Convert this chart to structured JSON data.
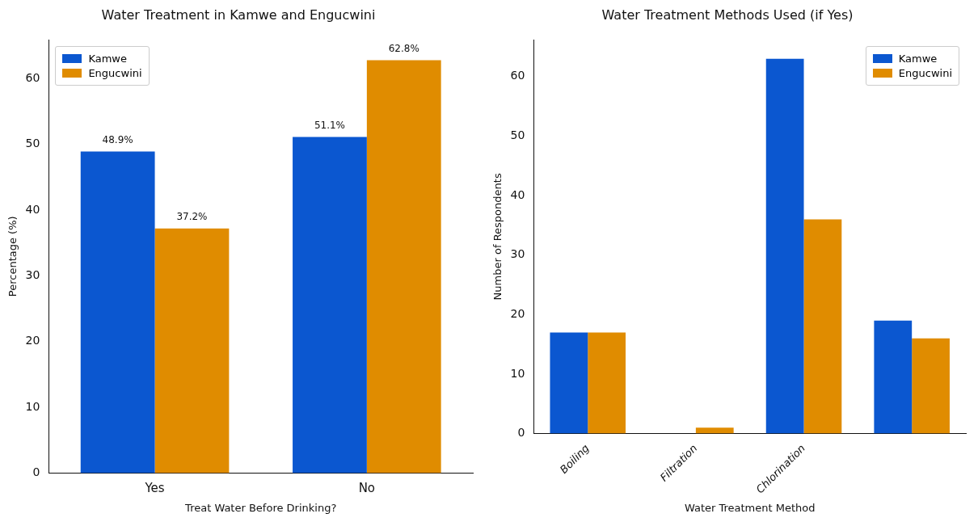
{
  "chart_data": [
    {
      "type": "bar",
      "title": "Water Treatment in Kamwe and Engucwini",
      "xlabel": "Treat Water Before Drinking?",
      "ylabel": "Percentage (%)",
      "categories": [
        "Yes",
        "No"
      ],
      "series": [
        {
          "name": "Kamwe",
          "color": "#0b57d0",
          "values": [
            48.9,
            51.1
          ],
          "value_labels": [
            "48.9%",
            "51.1%"
          ]
        },
        {
          "name": "Engucwini",
          "color": "#e08c00",
          "values": [
            37.2,
            62.8
          ],
          "value_labels": [
            "37.2%",
            "62.8%"
          ]
        }
      ],
      "ylim": [
        0,
        65.9
      ],
      "yticks": [
        0,
        10,
        20,
        30,
        40,
        50,
        60
      ],
      "grid": false,
      "legend": "top left"
    },
    {
      "type": "bar",
      "title": "Water Treatment Methods Used (if Yes)",
      "xlabel": "Water Treatment Method",
      "ylabel": "Number of Respondents",
      "categories": [
        "Boiling",
        "Filtration",
        "Chlorination",
        null
      ],
      "series": [
        {
          "name": "Kamwe",
          "color": "#0b57d0",
          "values": [
            17,
            0,
            63,
            19
          ]
        },
        {
          "name": "Engucwini",
          "color": "#e08c00",
          "values": [
            17,
            1,
            36,
            16
          ]
        }
      ],
      "ylim": [
        0,
        66.2
      ],
      "yticks": [
        0,
        10,
        20,
        30,
        40,
        50,
        60
      ],
      "grid": false,
      "legend": "top right"
    }
  ]
}
